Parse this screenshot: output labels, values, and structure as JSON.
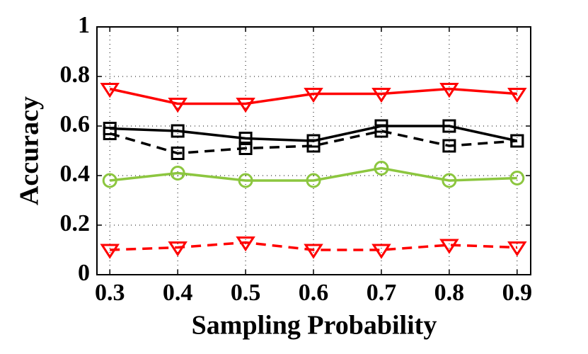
{
  "chart_data": {
    "type": "line",
    "x_label": "Sampling Probability",
    "y_label": "Accuracy",
    "x": [
      0.3,
      0.4,
      0.5,
      0.6,
      0.7,
      0.8,
      0.9
    ],
    "xlim": [
      0.281,
      0.92
    ],
    "xticks": [
      0.3,
      0.4,
      0.5,
      0.6,
      0.7,
      0.8,
      0.9
    ],
    "ylim": [
      0,
      1
    ],
    "yticks": [
      0,
      0.2,
      0.4,
      0.6,
      0.8,
      1
    ],
    "grid": true,
    "series": [
      {
        "color": "#ff0000",
        "dashed": false,
        "marker": "triangle-down",
        "values": [
          0.75,
          0.69,
          0.69,
          0.73,
          0.73,
          0.75,
          0.73
        ]
      },
      {
        "color": "#000000",
        "dashed": false,
        "marker": "square",
        "values": [
          0.59,
          0.58,
          0.55,
          0.54,
          0.6,
          0.6,
          0.54
        ]
      },
      {
        "color": "#000000",
        "dashed": true,
        "marker": "square",
        "values": [
          0.57,
          0.49,
          0.51,
          0.52,
          0.58,
          0.52,
          0.54
        ]
      },
      {
        "color": "#8cc63f",
        "dashed": false,
        "marker": "circle",
        "values": [
          0.38,
          0.41,
          0.38,
          0.38,
          0.43,
          0.38,
          0.39
        ]
      },
      {
        "color": "#ff0000",
        "dashed": true,
        "marker": "triangle-down",
        "values": [
          0.1,
          0.11,
          0.13,
          0.1,
          0.1,
          0.12,
          0.11
        ]
      }
    ]
  }
}
